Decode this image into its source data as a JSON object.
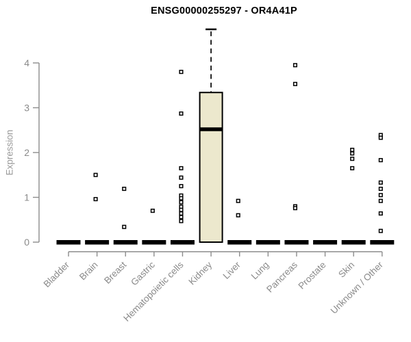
{
  "chart_data": {
    "type": "boxplot",
    "title": "ENSG00000255297 - OR4A41P",
    "ylabel": "Expression",
    "xlabel": "",
    "yticks": [
      0,
      1,
      2,
      3,
      4
    ],
    "ylim": [
      0,
      4.9
    ],
    "grid": false,
    "legend": "none",
    "categories": [
      "Bladder",
      "Brain",
      "Breast",
      "Gastric",
      "Hematopoietic cells",
      "Kidney",
      "Liver",
      "Lung",
      "Pancreas",
      "Prostate",
      "Skin",
      "Unknown / Other"
    ],
    "boxes": [
      {
        "category": "Bladder",
        "q1": 0,
        "median": 0,
        "q3": 0,
        "whisker_low": 0,
        "whisker_high": 0,
        "outliers": []
      },
      {
        "category": "Brain",
        "q1": 0,
        "median": 0,
        "q3": 0,
        "whisker_low": 0,
        "whisker_high": 0,
        "outliers": [
          1.5,
          0.96
        ]
      },
      {
        "category": "Breast",
        "q1": 0,
        "median": 0,
        "q3": 0,
        "whisker_low": 0,
        "whisker_high": 0,
        "outliers": [
          1.19,
          0.34
        ]
      },
      {
        "category": "Gastric",
        "q1": 0,
        "median": 0,
        "q3": 0,
        "whisker_low": 0,
        "whisker_high": 0,
        "outliers": [
          0.7
        ]
      },
      {
        "category": "Hematopoietic cells",
        "q1": 0,
        "median": 0,
        "q3": 0,
        "whisker_low": 0,
        "whisker_high": 0,
        "outliers": [
          3.8,
          2.87,
          1.65,
          1.44,
          1.25,
          1.04,
          0.98,
          0.89,
          0.79,
          0.72,
          0.64,
          0.56,
          0.47
        ]
      },
      {
        "category": "Kidney",
        "q1": 0,
        "median": 2.52,
        "q3": 3.34,
        "whisker_low": 0,
        "whisker_high": 4.75,
        "outliers": []
      },
      {
        "category": "Liver",
        "q1": 0,
        "median": 0,
        "q3": 0,
        "whisker_low": 0,
        "whisker_high": 0,
        "outliers": [
          0.92,
          0.6
        ]
      },
      {
        "category": "Lung",
        "q1": 0,
        "median": 0,
        "q3": 0,
        "whisker_low": 0,
        "whisker_high": 0,
        "outliers": []
      },
      {
        "category": "Pancreas",
        "q1": 0,
        "median": 0,
        "q3": 0,
        "whisker_low": 0,
        "whisker_high": 0,
        "outliers": [
          3.95,
          3.53,
          0.8,
          0.76
        ]
      },
      {
        "category": "Prostate",
        "q1": 0,
        "median": 0,
        "q3": 0,
        "whisker_low": 0,
        "whisker_high": 0,
        "outliers": []
      },
      {
        "category": "Skin",
        "q1": 0,
        "median": 0,
        "q3": 0,
        "whisker_low": 0,
        "whisker_high": 0,
        "outliers": [
          2.06,
          1.98,
          1.86,
          1.65
        ]
      },
      {
        "category": "Unknown / Other",
        "q1": 0,
        "median": 0,
        "q3": 0,
        "whisker_low": 0,
        "whisker_high": 0,
        "outliers": [
          2.39,
          2.33,
          1.83,
          1.33,
          1.19,
          1.05,
          0.92,
          0.64,
          0.25
        ]
      }
    ],
    "colors": {
      "background": "#ffffff",
      "box_fill": "#ece8cd",
      "box_border": "#000000",
      "median": "#000000",
      "collapsed_box": "#000000",
      "axis": "#8c8c8c",
      "tick_label": "#8a8a8a",
      "title": "#000000",
      "outlier_fill": "#ffffff",
      "outlier_border": "#000000"
    }
  }
}
